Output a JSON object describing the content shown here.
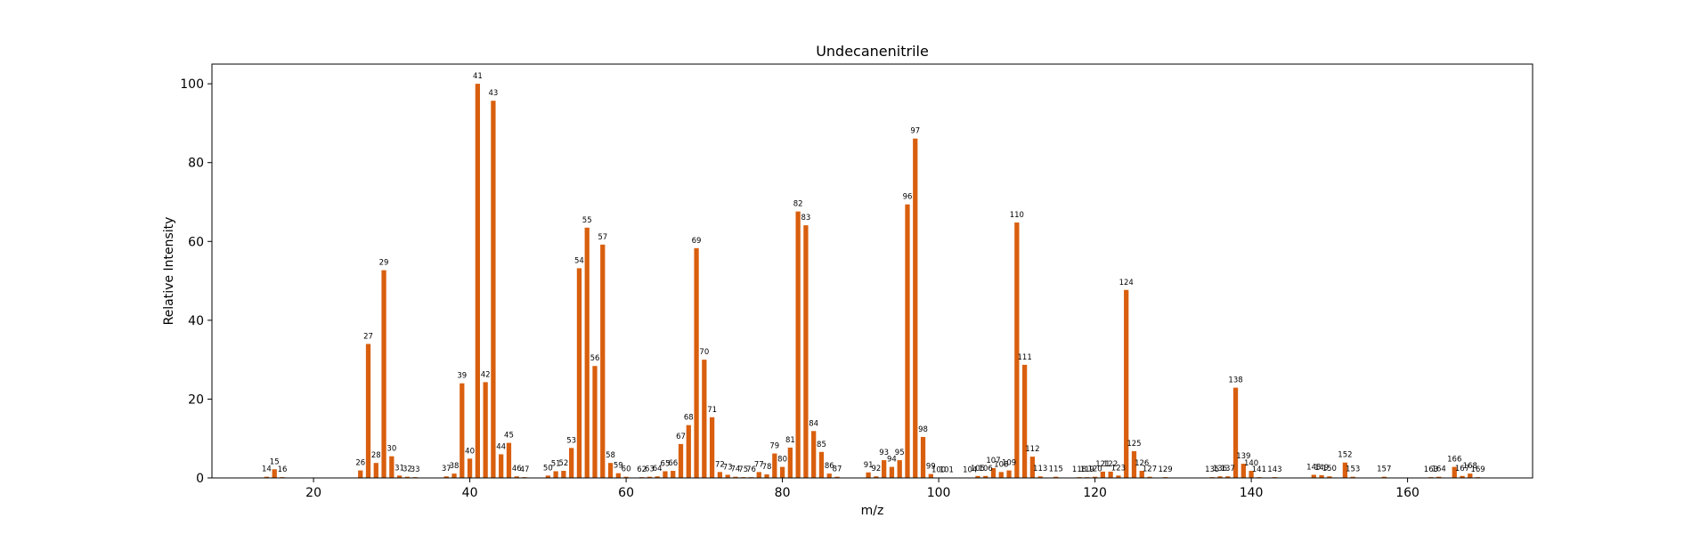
{
  "chart_data": {
    "type": "bar",
    "title": "Undecanenitrile",
    "xlabel": "m/z",
    "ylabel": "Relative Intensity",
    "xlim": [
      7,
      176
    ],
    "ylim": [
      0,
      105
    ],
    "xticks": [
      20,
      40,
      60,
      80,
      100,
      120,
      140,
      160
    ],
    "yticks": [
      0,
      20,
      40,
      60,
      80,
      100
    ],
    "bar_color": "#d95f0e",
    "grid": false,
    "x": [
      14,
      15,
      16,
      26,
      27,
      28,
      29,
      30,
      31,
      32,
      33,
      37,
      38,
      39,
      40,
      41,
      42,
      43,
      44,
      45,
      46,
      47,
      50,
      51,
      52,
      53,
      54,
      55,
      56,
      57,
      58,
      59,
      60,
      62,
      63,
      64,
      65,
      66,
      67,
      68,
      69,
      70,
      71,
      72,
      73,
      74,
      75,
      76,
      77,
      78,
      79,
      80,
      81,
      82,
      83,
      84,
      85,
      86,
      87,
      91,
      92,
      93,
      94,
      95,
      96,
      97,
      98,
      99,
      100,
      101,
      104,
      105,
      106,
      107,
      108,
      109,
      110,
      111,
      112,
      113,
      115,
      118,
      119,
      120,
      121,
      122,
      123,
      124,
      125,
      126,
      127,
      129,
      135,
      136,
      137,
      138,
      139,
      140,
      141,
      143,
      148,
      149,
      150,
      152,
      153,
      157,
      163,
      164,
      166,
      167,
      168,
      169
    ],
    "values": [
      0.3,
      2.2,
      0.2,
      1.9,
      34,
      3.8,
      52.7,
      5.5,
      0.6,
      0.3,
      0.2,
      0.4,
      1.1,
      24,
      4.9,
      100,
      24.3,
      95.7,
      6,
      8.9,
      0.4,
      0.2,
      0.6,
      1.7,
      1.8,
      7.6,
      53.2,
      63.5,
      28.4,
      59.2,
      3.8,
      1.2,
      0.3,
      0.2,
      0.3,
      0.4,
      1.7,
      1.8,
      8.6,
      13.4,
      58.3,
      30,
      15.4,
      1.5,
      0.8,
      0.3,
      0.2,
      0.2,
      1.5,
      0.9,
      6.2,
      2.8,
      7.7,
      67.6,
      64.1,
      11.9,
      6.6,
      1.1,
      0.3,
      1.4,
      0.4,
      4.5,
      2.8,
      4.5,
      69.4,
      86.1,
      10.4,
      1,
      0.1,
      0.1,
      0.1,
      0.5,
      0.5,
      2.5,
      1.5,
      1.9,
      64.8,
      28.7,
      5.4,
      0.4,
      0.3,
      0.2,
      0.2,
      0.3,
      1.6,
      1.6,
      0.6,
      47.7,
      6.8,
      1.8,
      0.3,
      0.2,
      0.2,
      0.4,
      0.4,
      22.9,
      3.6,
      1.8,
      0.2,
      0.2,
      0.8,
      0.7,
      0.4,
      3.9,
      0.3,
      0.3,
      0.2,
      0.3,
      2.8,
      0.5,
      1.1,
      0.2
    ]
  }
}
